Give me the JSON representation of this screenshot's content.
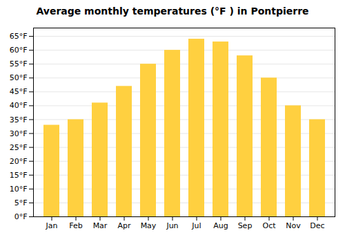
{
  "chart_data": {
    "type": "bar",
    "title": "Average monthly temperatures (°F ) in Pontpierre",
    "categories": [
      "Jan",
      "Feb",
      "Mar",
      "Apr",
      "May",
      "Jun",
      "Jul",
      "Aug",
      "Sep",
      "Oct",
      "Nov",
      "Dec"
    ],
    "values": [
      33,
      35,
      41,
      47,
      55,
      60,
      64,
      63,
      58,
      50,
      40,
      35
    ],
    "color": "#FFD040",
    "ylim": [
      0,
      68
    ],
    "yticks": [
      {
        "value": 0,
        "label": "0°F"
      },
      {
        "value": 5,
        "label": "5°F"
      },
      {
        "value": 10,
        "label": "10°F"
      },
      {
        "value": 15,
        "label": "15°F"
      },
      {
        "value": 20,
        "label": "20°F"
      },
      {
        "value": 25,
        "label": "25°F"
      },
      {
        "value": 30,
        "label": "30°F"
      },
      {
        "value": 35,
        "label": "35°F"
      },
      {
        "value": 40,
        "label": "40°F"
      },
      {
        "value": 45,
        "label": "45°F"
      },
      {
        "value": 50,
        "label": "50°F"
      },
      {
        "value": 55,
        "label": "55°F"
      },
      {
        "value": 60,
        "label": "60°F"
      },
      {
        "value": 65,
        "label": "65°F"
      }
    ],
    "grid": true
  }
}
